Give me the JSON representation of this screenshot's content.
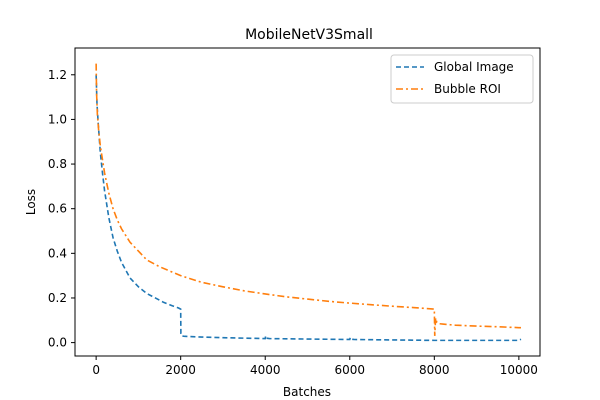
{
  "chart_data": {
    "type": "line",
    "title": "MobileNetV3Small",
    "xlabel": "Batches",
    "ylabel": "Loss",
    "xlim": [
      -500,
      10500
    ],
    "ylim": [
      -0.06,
      1.32
    ],
    "xticks": [
      0,
      2000,
      4000,
      6000,
      8000,
      10000
    ],
    "yticks": [
      0.0,
      0.2,
      0.4,
      0.6,
      0.8,
      1.0,
      1.2
    ],
    "xtick_labels": [
      "0",
      "2000",
      "4000",
      "6000",
      "8000",
      "10000"
    ],
    "ytick_labels": [
      "0.0",
      "0.2",
      "0.4",
      "0.6",
      "0.8",
      "1.0",
      "1.2"
    ],
    "grid": false,
    "legend_position": "top-right",
    "series": [
      {
        "name": "Global Image",
        "color": "#1f77b4",
        "style": "dashed",
        "x": [
          0,
          20,
          50,
          100,
          150,
          200,
          300,
          400,
          500,
          600,
          800,
          1000,
          1200,
          1400,
          1600,
          1800,
          1950,
          2000,
          2005,
          2020,
          2100,
          2500,
          3000,
          3500,
          4000,
          4010,
          4030,
          4100,
          4500,
          5000,
          5500,
          6000,
          6010,
          6030,
          6100,
          6500,
          7000,
          7500,
          8000,
          8500,
          9000,
          9500,
          10000,
          10050
        ],
        "y": [
          1.2,
          1.07,
          0.98,
          0.85,
          0.76,
          0.68,
          0.56,
          0.47,
          0.41,
          0.36,
          0.29,
          0.25,
          0.22,
          0.2,
          0.18,
          0.165,
          0.155,
          0.15,
          0.04,
          0.03,
          0.028,
          0.025,
          0.022,
          0.02,
          0.018,
          0.03,
          0.02,
          0.018,
          0.017,
          0.016,
          0.015,
          0.014,
          0.022,
          0.015,
          0.014,
          0.013,
          0.012,
          0.011,
          0.01,
          0.01,
          0.01,
          0.01,
          0.01,
          0.015
        ]
      },
      {
        "name": "Bubble ROI",
        "color": "#ff7f0e",
        "style": "dashdot",
        "x": [
          0,
          10,
          30,
          60,
          100,
          200,
          300,
          400,
          500,
          600,
          700,
          800,
          1000,
          1200,
          1500,
          2000,
          2500,
          3000,
          3500,
          4000,
          4500,
          5000,
          5500,
          6000,
          6500,
          7000,
          7500,
          8000,
          8010,
          8030,
          8060,
          8100,
          8200,
          8500,
          9000,
          9500,
          10000,
          10050
        ],
        "y": [
          1.25,
          1.12,
          1.02,
          0.95,
          0.88,
          0.76,
          0.67,
          0.6,
          0.55,
          0.51,
          0.48,
          0.45,
          0.41,
          0.37,
          0.34,
          0.3,
          0.27,
          0.25,
          0.232,
          0.218,
          0.205,
          0.195,
          0.185,
          0.177,
          0.17,
          0.163,
          0.157,
          0.15,
          0.03,
          0.11,
          0.09,
          0.085,
          0.083,
          0.078,
          0.074,
          0.071,
          0.067,
          0.067
        ]
      }
    ]
  }
}
